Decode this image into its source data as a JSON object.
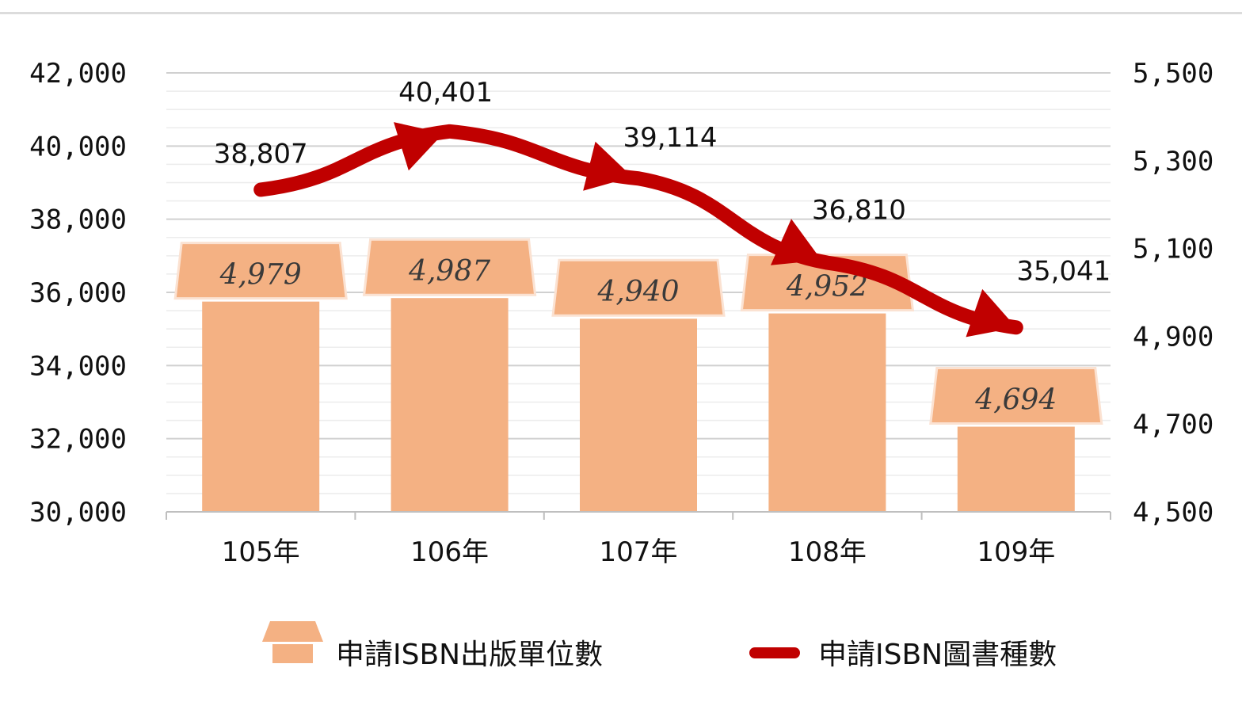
{
  "chart_data": {
    "type": "bar",
    "categories": [
      "105年",
      "106年",
      "107年",
      "108年",
      "109年"
    ],
    "series": [
      {
        "name": "申請ISBN出版單位數",
        "type": "bar",
        "axis": "right",
        "values": [
          4979,
          4987,
          4940,
          4952,
          4694
        ],
        "labels": [
          "4,979",
          "4,987",
          "4,940",
          "4,952",
          "4,694"
        ],
        "color": "#f4b183"
      },
      {
        "name": "申請ISBN圖書種數",
        "type": "line",
        "axis": "left",
        "values": [
          38807,
          40401,
          39114,
          36810,
          35041
        ],
        "labels": [
          "38,807",
          "40,401",
          "39,114",
          "36,810",
          "35,041"
        ],
        "color": "#c00000"
      }
    ],
    "left_axis": {
      "ylim": [
        30000,
        42000
      ],
      "ticks": [
        30000,
        32000,
        34000,
        36000,
        38000,
        40000,
        42000
      ],
      "tick_labels": [
        "30,000",
        "32,000",
        "34,000",
        "36,000",
        "38,000",
        "40,000",
        "42,000"
      ]
    },
    "right_axis": {
      "ylim": [
        4500,
        5500
      ],
      "ticks": [
        4500,
        4700,
        4900,
        5100,
        5300,
        5500
      ],
      "tick_labels": [
        "4,500",
        "4,700",
        "4,900",
        "5,100",
        "5,300",
        "5,500"
      ]
    },
    "grid": true,
    "legend": "bottom"
  }
}
